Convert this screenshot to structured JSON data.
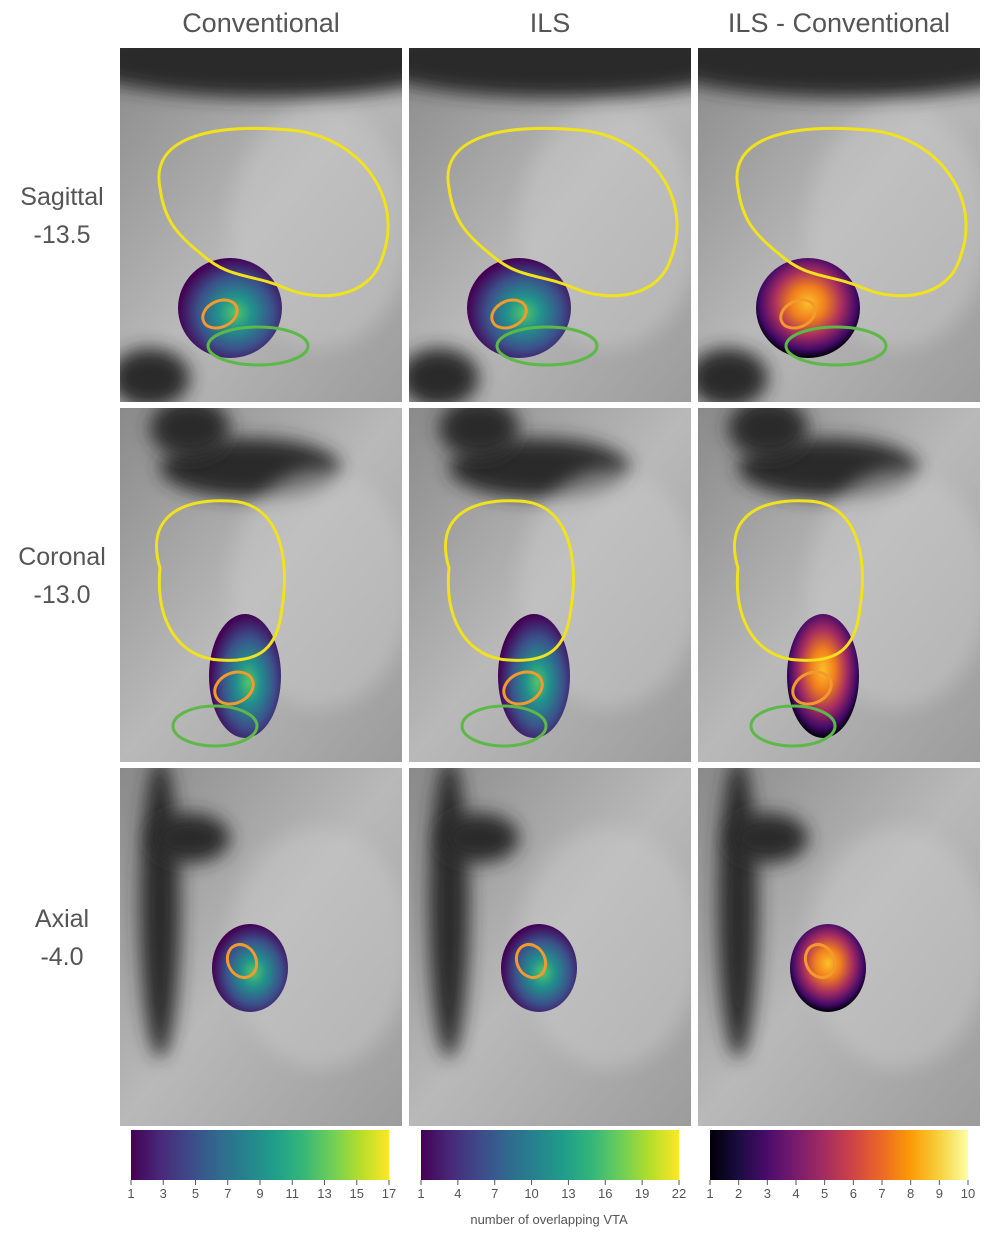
{
  "columns": [
    "Conventional",
    "ILS",
    "ILS - Conventional"
  ],
  "rows": [
    {
      "view": "Sagittal",
      "coordinate": "-13.5"
    },
    {
      "view": "Coronal",
      "coordinate": "-13.0"
    },
    {
      "view": "Axial",
      "coordinate": "-4.0"
    }
  ],
  "colorbars": [
    {
      "colormap": "viridis",
      "lim": [
        1,
        17
      ],
      "ticks": [
        1,
        3,
        5,
        7,
        9,
        11,
        13,
        15,
        17
      ]
    },
    {
      "colormap": "viridis",
      "lim": [
        1,
        22
      ],
      "ticks": [
        1,
        4,
        7,
        10,
        13,
        16,
        19,
        22
      ]
    },
    {
      "colormap": "inferno",
      "lim": [
        1,
        10
      ],
      "ticks": [
        1,
        2,
        3,
        4,
        5,
        6,
        7,
        8,
        9,
        10
      ]
    }
  ],
  "colorbar_label": "number of overlapping VTA"
}
